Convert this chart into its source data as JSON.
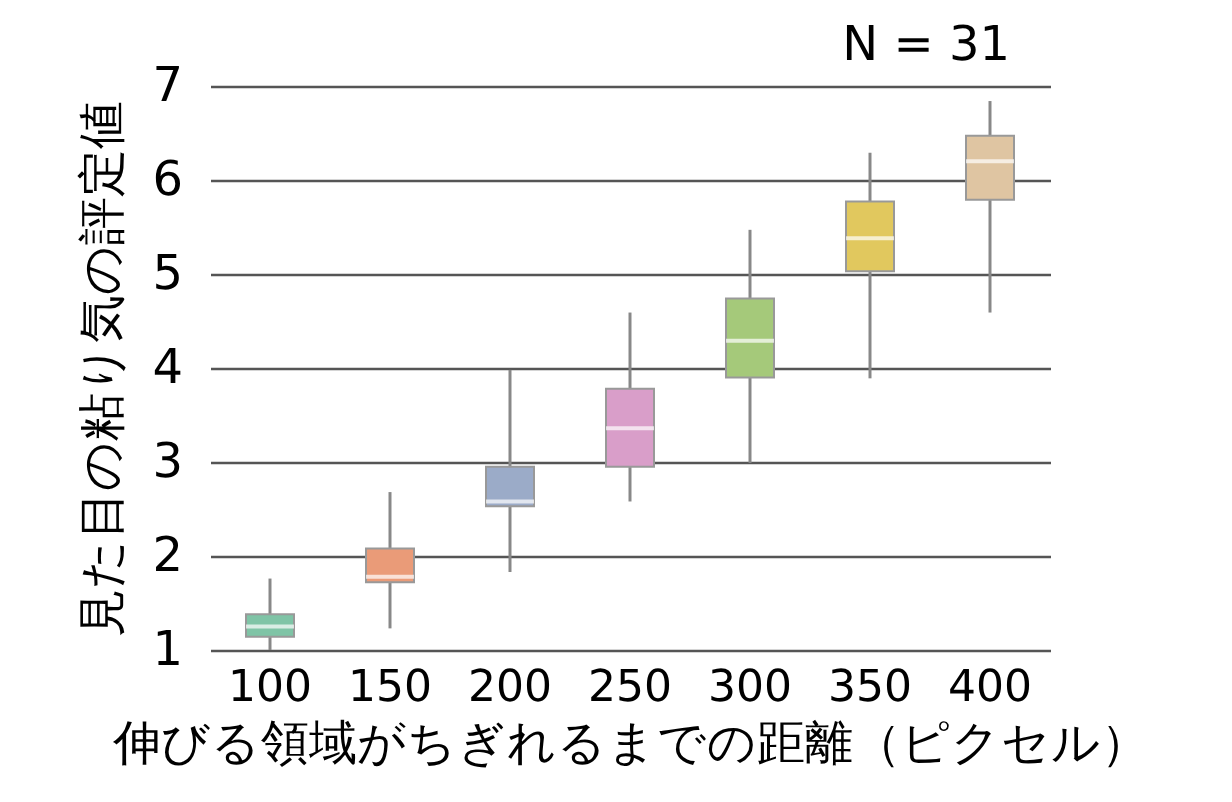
{
  "chart_data": {
    "type": "box",
    "xlabel": "伸びる領域がちぎれるまでの距離（ピクセル）",
    "ylabel": "見た目の粘り気の評定値",
    "annotations": [
      "N = 31"
    ],
    "categories": [
      "100",
      "150",
      "200",
      "250",
      "300",
      "350",
      "400"
    ],
    "boxes": [
      {
        "low": 1.0,
        "q1": 1.14,
        "median": 1.25,
        "q3": 1.38,
        "high": 1.76
      },
      {
        "low": 1.23,
        "q1": 1.72,
        "median": 1.78,
        "q3": 2.08,
        "high": 2.68
      },
      {
        "low": 1.83,
        "q1": 2.53,
        "median": 2.58,
        "q3": 2.95,
        "high": 3.98
      },
      {
        "low": 2.58,
        "q1": 2.95,
        "median": 3.36,
        "q3": 3.78,
        "high": 4.59
      },
      {
        "low": 2.99,
        "q1": 3.9,
        "median": 4.29,
        "q3": 4.74,
        "high": 5.47
      },
      {
        "low": 3.89,
        "q1": 5.03,
        "median": 5.38,
        "q3": 5.77,
        "high": 6.29
      },
      {
        "low": 4.59,
        "q1": 5.79,
        "median": 6.2,
        "q3": 6.47,
        "high": 6.84
      }
    ],
    "colors": [
      "#7fc4a6",
      "#ea9b78",
      "#9babc8",
      "#d99ec9",
      "#a5c97a",
      "#e1c85e",
      "#dfc5a2"
    ],
    "ylim": [
      1,
      7
    ],
    "yticks": [
      1,
      2,
      3,
      4,
      5,
      6,
      7
    ],
    "grid": "y"
  }
}
